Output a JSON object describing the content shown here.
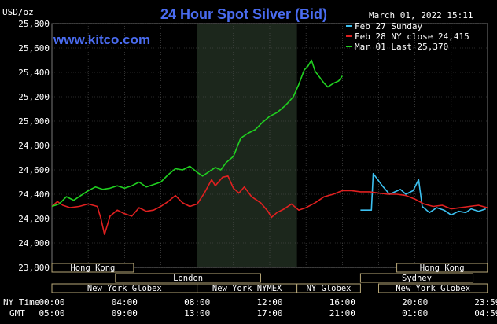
{
  "chart_data": {
    "type": "line",
    "title": "24 Hour Spot Silver (Bid)",
    "ylabel": "USD/oz",
    "watermark": "www.kitco.com",
    "timestamp": "March 01, 2022 15:11",
    "ylim": [
      23.8,
      25.8
    ],
    "y_ticks": [
      "25,800",
      "25,600",
      "25,400",
      "25,200",
      "25,000",
      "24,800",
      "24,600",
      "24,400",
      "24,200",
      "24,000",
      "23,800"
    ],
    "x_row_label_ny": "NY Time",
    "x_row_label_gmt": "GMT",
    "x_ticks_ny": [
      "00:00",
      "04:00",
      "08:00",
      "12:00",
      "16:00",
      "20:00",
      "23:59"
    ],
    "x_ticks_gmt": [
      "05:00",
      "09:00",
      "13:00",
      "17:00",
      "21:00",
      "01:00",
      "04:59"
    ],
    "legend": [
      {
        "label": "Feb 27 Sunday",
        "color": "#3cc0f0"
      },
      {
        "label": "Feb 28 NY close 24,415",
        "color": "#e02020"
      },
      {
        "label": "Mar 01 Last 25,370",
        "color": "#20d020"
      }
    ],
    "sessions": [
      {
        "label": "Hong Kong",
        "start": 0,
        "end": 4.5,
        "row": 0
      },
      {
        "label": "Hong Kong",
        "start": 19,
        "end": 23.99,
        "row": 0
      },
      {
        "label": "London",
        "start": 3.5,
        "end": 11.5,
        "row": 1
      },
      {
        "label": "Sydney",
        "start": 17,
        "end": 23.2,
        "row": 1
      },
      {
        "label": "New York Globex",
        "start": 0,
        "end": 8,
        "row": 2
      },
      {
        "label": "New York NYMEX",
        "start": 8,
        "end": 13.5,
        "row": 2
      },
      {
        "label": "NY Globex",
        "start": 13.5,
        "end": 17,
        "row": 2
      },
      {
        "label": "New York Globex",
        "start": 18,
        "end": 23.99,
        "row": 2
      }
    ],
    "highlight_band": [
      8.0,
      13.5
    ],
    "series": [
      {
        "name": "Feb 27 Sunday",
        "color": "#3cc0f0",
        "points": [
          [
            17.0,
            24.27
          ],
          [
            17.6,
            24.27
          ],
          [
            17.7,
            24.57
          ],
          [
            18.2,
            24.47
          ],
          [
            18.6,
            24.4
          ],
          [
            18.9,
            24.42
          ],
          [
            19.2,
            24.44
          ],
          [
            19.5,
            24.4
          ],
          [
            19.9,
            24.43
          ],
          [
            20.2,
            24.52
          ],
          [
            20.4,
            24.3
          ],
          [
            20.8,
            24.25
          ],
          [
            21.2,
            24.29
          ],
          [
            21.6,
            24.27
          ],
          [
            22.0,
            24.23
          ],
          [
            22.4,
            24.26
          ],
          [
            22.8,
            24.25
          ],
          [
            23.1,
            24.28
          ],
          [
            23.5,
            24.26
          ],
          [
            23.9,
            24.28
          ]
        ]
      },
      {
        "name": "Feb 28 NY close 24,415",
        "color": "#e02020",
        "points": [
          [
            0.0,
            24.3
          ],
          [
            0.3,
            24.34
          ],
          [
            0.6,
            24.31
          ],
          [
            1.0,
            24.29
          ],
          [
            1.5,
            24.3
          ],
          [
            2.0,
            24.32
          ],
          [
            2.5,
            24.3
          ],
          [
            2.7,
            24.2
          ],
          [
            2.9,
            24.07
          ],
          [
            3.2,
            24.22
          ],
          [
            3.6,
            24.27
          ],
          [
            4.0,
            24.24
          ],
          [
            4.4,
            24.22
          ],
          [
            4.8,
            24.29
          ],
          [
            5.2,
            24.26
          ],
          [
            5.6,
            24.27
          ],
          [
            6.0,
            24.3
          ],
          [
            6.4,
            24.34
          ],
          [
            6.8,
            24.39
          ],
          [
            7.2,
            24.33
          ],
          [
            7.6,
            24.3
          ],
          [
            8.0,
            24.32
          ],
          [
            8.4,
            24.41
          ],
          [
            8.8,
            24.52
          ],
          [
            9.0,
            24.47
          ],
          [
            9.4,
            24.54
          ],
          [
            9.7,
            24.55
          ],
          [
            10.0,
            24.45
          ],
          [
            10.3,
            24.41
          ],
          [
            10.6,
            24.46
          ],
          [
            11.0,
            24.38
          ],
          [
            11.5,
            24.33
          ],
          [
            11.9,
            24.26
          ],
          [
            12.1,
            24.21
          ],
          [
            12.4,
            24.25
          ],
          [
            12.8,
            24.28
          ],
          [
            13.2,
            24.32
          ],
          [
            13.6,
            24.27
          ],
          [
            14.0,
            24.29
          ],
          [
            14.5,
            24.33
          ],
          [
            15.0,
            24.38
          ],
          [
            15.5,
            24.4
          ],
          [
            16.0,
            24.43
          ],
          [
            16.5,
            24.43
          ],
          [
            17.0,
            24.42
          ],
          [
            17.5,
            24.42
          ],
          [
            18.0,
            24.41
          ],
          [
            18.5,
            24.4
          ],
          [
            19.0,
            24.4
          ],
          [
            19.5,
            24.39
          ],
          [
            20.0,
            24.36
          ],
          [
            20.5,
            24.32
          ],
          [
            21.0,
            24.3
          ],
          [
            21.5,
            24.31
          ],
          [
            22.0,
            24.28
          ],
          [
            22.5,
            24.29
          ],
          [
            23.0,
            24.3
          ],
          [
            23.5,
            24.31
          ],
          [
            23.99,
            24.29
          ]
        ]
      },
      {
        "name": "Mar 01 Last 25,370",
        "color": "#20d020",
        "points": [
          [
            0.0,
            24.3
          ],
          [
            0.4,
            24.32
          ],
          [
            0.8,
            24.38
          ],
          [
            1.2,
            24.35
          ],
          [
            1.6,
            24.39
          ],
          [
            2.0,
            24.43
          ],
          [
            2.4,
            24.46
          ],
          [
            2.8,
            24.44
          ],
          [
            3.2,
            24.45
          ],
          [
            3.6,
            24.47
          ],
          [
            4.0,
            24.45
          ],
          [
            4.4,
            24.47
          ],
          [
            4.8,
            24.5
          ],
          [
            5.2,
            24.46
          ],
          [
            5.6,
            24.48
          ],
          [
            6.0,
            24.5
          ],
          [
            6.4,
            24.56
          ],
          [
            6.8,
            24.61
          ],
          [
            7.2,
            24.6
          ],
          [
            7.6,
            24.63
          ],
          [
            8.0,
            24.58
          ],
          [
            8.3,
            24.55
          ],
          [
            8.6,
            24.58
          ],
          [
            9.0,
            24.62
          ],
          [
            9.3,
            24.6
          ],
          [
            9.6,
            24.66
          ],
          [
            10.0,
            24.71
          ],
          [
            10.4,
            24.86
          ],
          [
            10.8,
            24.9
          ],
          [
            11.2,
            24.93
          ],
          [
            11.6,
            24.99
          ],
          [
            12.0,
            25.04
          ],
          [
            12.4,
            25.07
          ],
          [
            12.8,
            25.12
          ],
          [
            13.0,
            25.15
          ],
          [
            13.3,
            25.2
          ],
          [
            13.6,
            25.3
          ],
          [
            13.9,
            25.42
          ],
          [
            14.1,
            25.45
          ],
          [
            14.3,
            25.5
          ],
          [
            14.5,
            25.41
          ],
          [
            14.8,
            25.35
          ],
          [
            15.0,
            25.31
          ],
          [
            15.2,
            25.28
          ],
          [
            15.5,
            25.31
          ],
          [
            15.8,
            25.33
          ],
          [
            16.0,
            25.37
          ]
        ]
      }
    ]
  }
}
